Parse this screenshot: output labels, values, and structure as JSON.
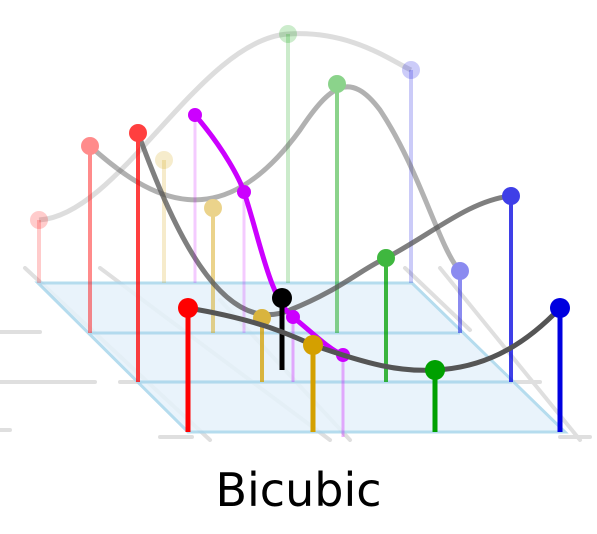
{
  "caption": "Bicubic",
  "colors": {
    "red": "#ff0000",
    "gold": "#d4a000",
    "green": "#00a000",
    "blue": "#0000e0",
    "magenta": "#cc00ff",
    "black": "#000000",
    "curve": "#555555",
    "plane_fill": "#e3f1fb",
    "plane_stroke": "#a9d6ec",
    "guide": "#cccccc"
  },
  "rows": [
    {
      "row": 1,
      "opacity": 0.2,
      "colors": [
        "red",
        "gold",
        "green",
        "blue"
      ]
    },
    {
      "row": 2,
      "opacity": 0.45,
      "colors": [
        "red",
        "gold",
        "green",
        "blue"
      ]
    },
    {
      "row": 3,
      "opacity": 1.0,
      "colors": [
        "red",
        "gold",
        "green",
        "blue"
      ]
    }
  ],
  "result_point_color": "black",
  "interpolated_curve_color": "magenta"
}
